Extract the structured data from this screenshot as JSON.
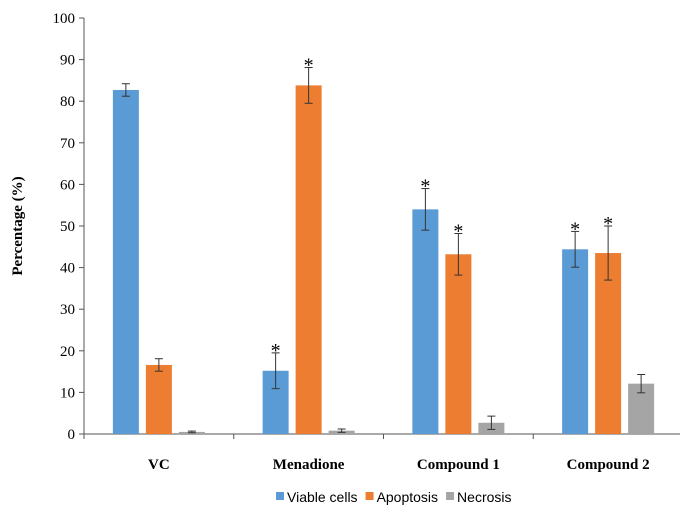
{
  "chart_data": {
    "type": "bar",
    "title": "",
    "xlabel": "",
    "ylabel": "Percentage  (%)",
    "ylim": [
      0,
      100
    ],
    "yticks": [
      0,
      10,
      20,
      30,
      40,
      50,
      60,
      70,
      80,
      90,
      100
    ],
    "grid": false,
    "legend_position": "bottom",
    "categories": [
      "VC",
      "Menadione",
      "Compound 1",
      "Compound 2"
    ],
    "series": [
      {
        "name": "Viable cells",
        "color": "#5b9bd5",
        "values": [
          82.7,
          15.2,
          54.0,
          44.4
        ],
        "errors": [
          1.5,
          4.3,
          5.0,
          4.3
        ],
        "significant": [
          false,
          true,
          true,
          true
        ]
      },
      {
        "name": "Apoptosis",
        "color": "#ed7d31",
        "values": [
          16.6,
          83.8,
          43.2,
          43.5
        ],
        "errors": [
          1.5,
          4.3,
          5.0,
          6.5
        ],
        "significant": [
          false,
          true,
          true,
          true
        ]
      },
      {
        "name": "Necrosis",
        "color": "#a5a5a5",
        "values": [
          0.5,
          0.8,
          2.7,
          12.1
        ],
        "errors": [
          0.2,
          0.4,
          1.6,
          2.2
        ],
        "significant": [
          false,
          false,
          false,
          false
        ]
      }
    ],
    "annotation_symbol": "*"
  }
}
